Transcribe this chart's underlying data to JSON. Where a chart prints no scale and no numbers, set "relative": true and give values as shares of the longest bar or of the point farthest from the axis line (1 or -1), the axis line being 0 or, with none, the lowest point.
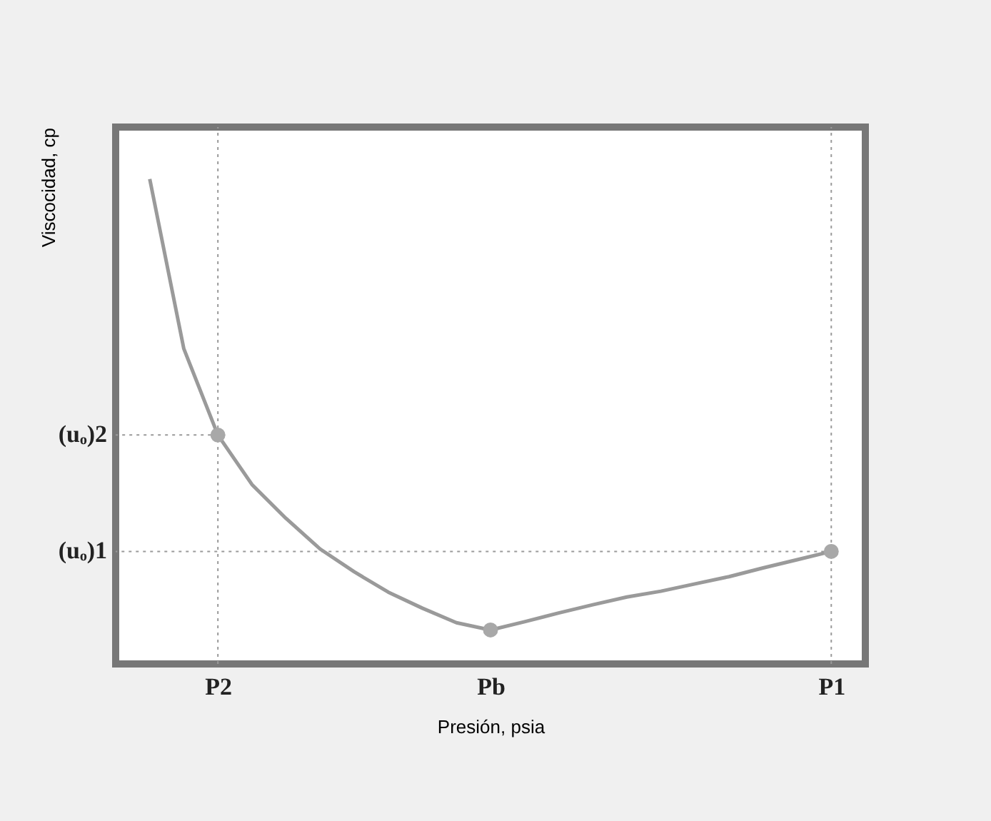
{
  "chart_data": {
    "type": "line",
    "relative": true,
    "xlabel": "Presión, psia",
    "ylabel": "Viscocidad, cp",
    "categories": [
      null,
      null,
      "P2",
      null,
      null,
      null,
      null,
      null,
      null,
      null,
      "Pb",
      null,
      null,
      null,
      null,
      null,
      null,
      null,
      null,
      null,
      "P1"
    ],
    "grid": false,
    "series": [
      {
        "color": "#9a9a9a",
        "values": [
          1.0,
          0.65,
          0.472,
          0.37,
          0.3,
          0.237,
          0.19,
          0.148,
          0.115,
          0.085,
          0.07,
          0.087,
          0.105,
          0.122,
          0.138,
          0.15,
          0.165,
          0.18,
          0.198,
          0.215,
          0.232
        ]
      },
      {
        "type": "scatter",
        "color": "#a8a8a8",
        "marker": "circle",
        "x": [
          "P2",
          "Pb",
          "P1"
        ],
        "values": [
          0.472,
          0.07,
          0.232
        ]
      }
    ],
    "ref_lines": [
      {
        "axis": "y",
        "value": 0.472,
        "label": "(uₒ)2",
        "color": "#9a9a9a",
        "line_style": "dotted"
      },
      {
        "axis": "y",
        "value": 0.232,
        "label": "(uₒ)1",
        "color": "#9a9a9a",
        "line_style": "dotted"
      },
      {
        "axis": "x",
        "value": "P2",
        "color": "#9a9a9a",
        "line_style": "dotted"
      },
      {
        "axis": "x",
        "value": "P1",
        "color": "#9a9a9a",
        "line_style": "dotted"
      }
    ]
  }
}
